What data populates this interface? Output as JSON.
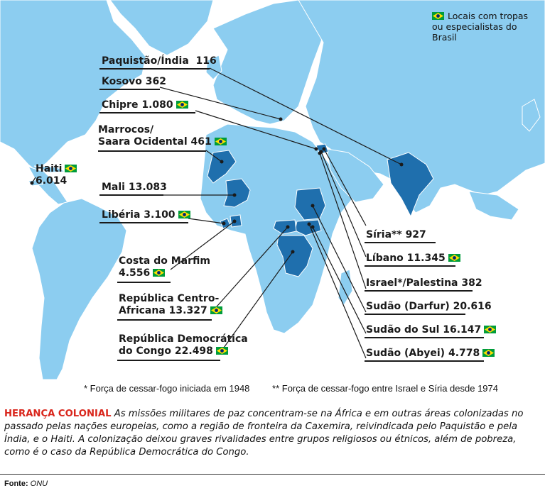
{
  "legend": {
    "text_line1": "Locais com tropas",
    "text_line2": "ou especialistas do",
    "text_line3": "Brasil"
  },
  "missions": [
    {
      "name": "Paquistão/Índia",
      "value": "116",
      "brazil": false
    },
    {
      "name": "Kosovo",
      "value": "362",
      "brazil": false
    },
    {
      "name": "Chipre",
      "value": "1.080",
      "brazil": true
    },
    {
      "name_line1": "Marrocos/",
      "name_line2": "Saara Ocidental",
      "value": "461",
      "brazil": true
    },
    {
      "name": "Haiti",
      "value": "6.014",
      "brazil": true
    },
    {
      "name": "Mali",
      "value": "13.083",
      "brazil": false
    },
    {
      "name": "Libéria",
      "value": "3.100",
      "brazil": true
    },
    {
      "name_line1": "Costa do Marfim",
      "value": "4.556",
      "brazil": true
    },
    {
      "name_line1": "República Centro-",
      "name_line2": "Africana",
      "value": "13.327",
      "brazil": true
    },
    {
      "name_line1": "República Democrática",
      "name_line2": "do Congo",
      "value": "22.498",
      "brazil": true
    },
    {
      "name": "Síria**",
      "value": "927",
      "brazil": false
    },
    {
      "name": "Líbano",
      "value": "11.345",
      "brazil": true
    },
    {
      "name": "Israel*/Palestina",
      "value": "382",
      "brazil": false
    },
    {
      "name": "Sudão (Darfur)",
      "value": "20.616",
      "brazil": false
    },
    {
      "name": "Sudão do Sul",
      "value": "16.147",
      "brazil": true
    },
    {
      "name": "Sudão (Abyei)",
      "value": "4.778",
      "brazil": true
    }
  ],
  "footnotes": {
    "note1": "* Força de cessar-fogo iniciada em 1948",
    "note2": "** Força de cessar-fogo entre Israel e Síria desde 1974"
  },
  "caption": {
    "heading": "HERANÇA COLONIAL",
    "body": "As missões militares de paz concentram-se na África e em outras áreas colonizadas no passado pelas nações europeias, como a região de fronteira da Caxemira, reivindicada pelo Paquistão e pela Índia, e o Haiti. A colonização deixou graves rivalidades entre grupos religiosos ou étnicos, além de pobreza, como é o caso da República Democrática do Congo."
  },
  "source": {
    "label": "Fonte:",
    "value": "ONU"
  },
  "colors": {
    "land": "#8ccdf0",
    "highlight": "#1f6fad",
    "border": "#ffffff",
    "caption_red": "#d9261c"
  }
}
